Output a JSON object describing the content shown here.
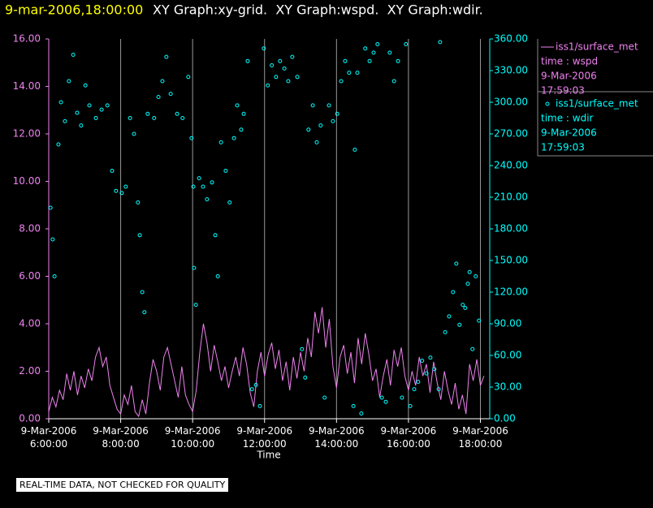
{
  "chart_data": {
    "type": "line-scatter",
    "title_time": "9-mar-2006,18:00:00",
    "title": "XY Graph:xy-grid.  XY Graph:wspd.  XY Graph:wdir.",
    "x_label": "Time",
    "note": "REAL-TIME DATA, NOT CHECKED FOR QUALITY",
    "xlim": [
      6,
      18.26
    ],
    "xticks": [
      {
        "value": 6,
        "label": "9-Mar-2006\n6:00:00"
      },
      {
        "value": 8,
        "label": "9-Mar-2006\n8:00:00"
      },
      {
        "value": 10,
        "label": "9-Mar-2006\n10:00:00"
      },
      {
        "value": 12,
        "label": "9-Mar-2006\n12:00:00"
      },
      {
        "value": 14,
        "label": "9-Mar-2006\n14:00:00"
      },
      {
        "value": 16,
        "label": "9-Mar-2006\n16:00:00"
      },
      {
        "value": 18,
        "label": "9-Mar-2006\n18:00:00"
      }
    ],
    "ylim": [
      0,
      16
    ],
    "yticks": [
      {
        "value": 0,
        "label": "0.00"
      },
      {
        "value": 2,
        "label": "2.00"
      },
      {
        "value": 4,
        "label": "4.00"
      },
      {
        "value": 6,
        "label": "6.00"
      },
      {
        "value": 8,
        "label": "8.00"
      },
      {
        "value": 10,
        "label": "10.00"
      },
      {
        "value": 12,
        "label": "12.00"
      },
      {
        "value": 14,
        "label": "14.00"
      },
      {
        "value": 16,
        "label": "16.00"
      }
    ],
    "y2lim": [
      0,
      360
    ],
    "y2ticks": [
      {
        "value": 0,
        "label": "0.00"
      },
      {
        "value": 30,
        "label": "30.00"
      },
      {
        "value": 60,
        "label": "60.00"
      },
      {
        "value": 90,
        "label": "90.00"
      },
      {
        "value": 120,
        "label": "120.00"
      },
      {
        "value": 150,
        "label": "150.00"
      },
      {
        "value": 180,
        "label": "180.00"
      },
      {
        "value": 210,
        "label": "210.00"
      },
      {
        "value": 240,
        "label": "240.00"
      },
      {
        "value": 270,
        "label": "270.00"
      },
      {
        "value": 300,
        "label": "300.00"
      },
      {
        "value": 330,
        "label": "330.00"
      },
      {
        "value": 360,
        "label": "360.00"
      }
    ],
    "grid": "x",
    "series": [
      {
        "name": "iss1/surface_met",
        "legend_lines": [
          "time : wspd",
          "9-Mar-2006",
          "17:59:03"
        ],
        "color": "#ee82ee",
        "kind": "line",
        "axis": "y",
        "x": [
          6.0,
          6.1,
          6.2,
          6.3,
          6.4,
          6.5,
          6.6,
          6.7,
          6.8,
          6.9,
          7.0,
          7.1,
          7.2,
          7.3,
          7.4,
          7.5,
          7.6,
          7.7,
          7.8,
          7.9,
          8.0,
          8.1,
          8.2,
          8.3,
          8.4,
          8.5,
          8.6,
          8.7,
          8.8,
          8.9,
          9.0,
          9.1,
          9.2,
          9.3,
          9.4,
          9.5,
          9.6,
          9.7,
          9.8,
          9.9,
          10.0,
          10.1,
          10.2,
          10.3,
          10.4,
          10.5,
          10.6,
          10.7,
          10.8,
          10.9,
          11.0,
          11.1,
          11.2,
          11.3,
          11.4,
          11.5,
          11.6,
          11.7,
          11.8,
          11.9,
          12.0,
          12.1,
          12.2,
          12.3,
          12.4,
          12.5,
          12.6,
          12.7,
          12.8,
          12.9,
          13.0,
          13.1,
          13.2,
          13.3,
          13.4,
          13.5,
          13.6,
          13.7,
          13.8,
          13.9,
          14.0,
          14.1,
          14.2,
          14.3,
          14.4,
          14.5,
          14.6,
          14.7,
          14.8,
          14.9,
          15.0,
          15.1,
          15.2,
          15.3,
          15.4,
          15.5,
          15.6,
          15.7,
          15.8,
          15.9,
          16.0,
          16.1,
          16.2,
          16.3,
          16.4,
          16.5,
          16.6,
          16.7,
          16.8,
          16.9,
          17.0,
          17.1,
          17.2,
          17.3,
          17.4,
          17.5,
          17.6,
          17.7,
          17.8,
          17.9,
          18.0,
          18.1
        ],
        "values": [
          0.3,
          0.9,
          0.5,
          1.2,
          0.8,
          1.9,
          1.2,
          2.0,
          1.0,
          1.8,
          1.3,
          2.1,
          1.6,
          2.6,
          3.0,
          2.2,
          2.6,
          1.4,
          0.9,
          0.4,
          0.2,
          1.0,
          0.6,
          1.4,
          0.3,
          0.1,
          0.8,
          0.2,
          1.5,
          2.5,
          2.0,
          1.2,
          2.6,
          3.0,
          2.3,
          1.6,
          0.9,
          2.2,
          1.0,
          0.6,
          0.3,
          1.2,
          2.8,
          4.0,
          3.2,
          2.0,
          3.1,
          2.4,
          1.6,
          2.2,
          1.3,
          2.0,
          2.6,
          1.8,
          3.0,
          2.3,
          1.1,
          0.5,
          2.0,
          2.8,
          1.8,
          2.7,
          3.2,
          2.1,
          2.9,
          1.6,
          2.4,
          1.2,
          2.6,
          1.7,
          2.8,
          2.0,
          3.4,
          2.6,
          4.5,
          3.6,
          4.7,
          3.0,
          4.2,
          2.2,
          1.3,
          2.6,
          3.1,
          1.9,
          2.8,
          1.5,
          3.4,
          2.3,
          3.6,
          2.7,
          1.6,
          2.1,
          0.9,
          1.8,
          2.5,
          1.4,
          2.9,
          2.2,
          3.0,
          1.8,
          1.2,
          2.0,
          1.4,
          2.6,
          1.8,
          2.3,
          1.1,
          2.4,
          1.5,
          0.8,
          2.0,
          1.2,
          0.6,
          1.5,
          0.4,
          1.0,
          0.2,
          2.3,
          1.6,
          2.5,
          1.4,
          1.8
        ]
      },
      {
        "name": "iss1/surface_met",
        "legend_lines": [
          "time : wdir",
          "9-Mar-2006",
          "17:59:03"
        ],
        "color": "#00ffff",
        "kind": "scatter",
        "axis": "y2",
        "x": [
          6.05,
          6.11,
          6.16,
          6.27,
          6.34,
          6.45,
          6.56,
          6.68,
          6.79,
          6.9,
          7.02,
          7.13,
          7.31,
          7.47,
          7.63,
          7.76,
          7.87,
          8.03,
          8.14,
          8.26,
          8.37,
          8.48,
          8.53,
          8.6,
          8.66,
          8.75,
          8.93,
          9.05,
          9.16,
          9.27,
          9.39,
          9.57,
          9.72,
          9.88,
          9.97,
          10.02,
          10.04,
          10.09,
          10.18,
          10.29,
          10.4,
          10.54,
          10.63,
          10.7,
          10.79,
          10.92,
          11.03,
          11.15,
          11.24,
          11.35,
          11.42,
          11.53,
          11.65,
          11.76,
          11.87,
          11.98,
          12.09,
          12.2,
          12.32,
          12.43,
          12.55,
          12.66,
          12.77,
          12.91,
          13.04,
          13.13,
          13.22,
          13.34,
          13.45,
          13.56,
          13.67,
          13.79,
          13.9,
          14.02,
          14.13,
          14.24,
          14.35,
          14.47,
          14.51,
          14.58,
          14.69,
          14.8,
          14.92,
          15.03,
          15.14,
          15.26,
          15.37,
          15.48,
          15.6,
          15.71,
          15.82,
          15.93,
          16.05,
          16.16,
          16.27,
          16.38,
          16.5,
          16.61,
          16.72,
          16.84,
          16.88,
          17.02,
          17.13,
          17.24,
          17.33,
          17.42,
          17.51,
          17.58,
          17.65,
          17.7,
          17.78,
          17.87,
          17.96
        ],
        "values": [
          200,
          170,
          135,
          260,
          300,
          282,
          320,
          345,
          290,
          278,
          316,
          297,
          285,
          293,
          297,
          235,
          216,
          214,
          220,
          285,
          270,
          205,
          174,
          120,
          101,
          289,
          285,
          305,
          320,
          343,
          308,
          289,
          285,
          324,
          266,
          220,
          143,
          108,
          228,
          220,
          208,
          224,
          174,
          135,
          262,
          235,
          205,
          266,
          297,
          274,
          289,
          339,
          28,
          32,
          12,
          351,
          316,
          335,
          324,
          339,
          332,
          320,
          343,
          324,
          66,
          39,
          274,
          297,
          262,
          278,
          20,
          297,
          282,
          289,
          320,
          339,
          328,
          12,
          255,
          328,
          5,
          351,
          339,
          347,
          355,
          20,
          16,
          347,
          320,
          339,
          20,
          355,
          12,
          28,
          35,
          55,
          43,
          58,
          47,
          28,
          357,
          82,
          97,
          120,
          147,
          89,
          108,
          105,
          128,
          139,
          66,
          135,
          93
        ]
      }
    ]
  }
}
